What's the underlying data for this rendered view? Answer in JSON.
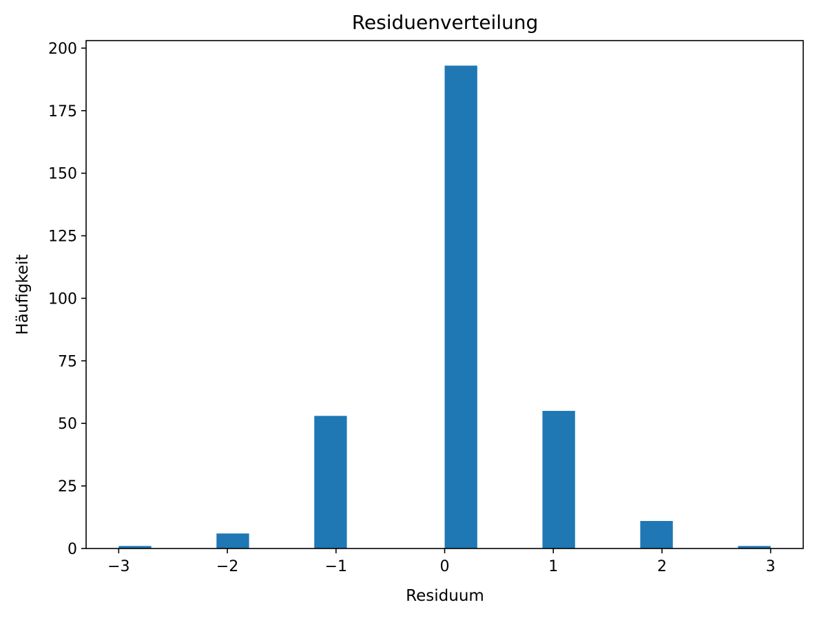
{
  "chart_data": {
    "type": "bar",
    "title": "Residuenverteilung",
    "xlabel": "Residuum",
    "ylabel": "Häufigkeit",
    "xlim": [
      -3.3,
      3.3
    ],
    "ylim": [
      0,
      203
    ],
    "x_ticks": [
      -3,
      -2,
      -1,
      0,
      1,
      2,
      3
    ],
    "x_tick_labels": [
      "−3",
      "−2",
      "−1",
      "0",
      "1",
      "2",
      "3"
    ],
    "y_ticks": [
      0,
      25,
      50,
      75,
      100,
      125,
      150,
      175,
      200
    ],
    "y_tick_labels": [
      "0",
      "25",
      "50",
      "75",
      "100",
      "125",
      "150",
      "175",
      "200"
    ],
    "bin_width": 0.3,
    "bars": [
      {
        "x_start": -3.0,
        "value": 1
      },
      {
        "x_start": -2.1,
        "value": 6
      },
      {
        "x_start": -1.2,
        "value": 53
      },
      {
        "x_start": 0.0,
        "value": 193
      },
      {
        "x_start": 0.9,
        "value": 55
      },
      {
        "x_start": 1.8,
        "value": 11
      },
      {
        "x_start": 2.7,
        "value": 1
      }
    ],
    "bar_color": "#1f77b4",
    "grid": false,
    "legend": "none"
  }
}
